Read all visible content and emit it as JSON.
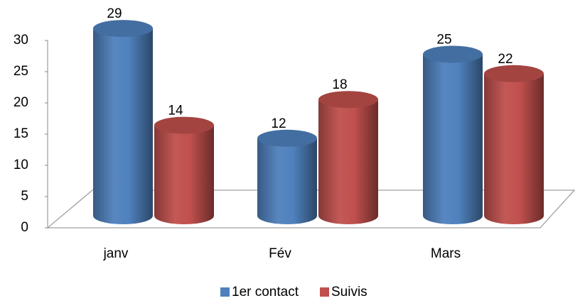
{
  "chart_data": {
    "type": "bar3d-cylinder",
    "categories": [
      "janv",
      "Fév",
      "Mars"
    ],
    "series": [
      {
        "name": "1er contact",
        "color": "#4f81bd",
        "values": [
          29,
          12,
          25
        ]
      },
      {
        "name": "Suivis",
        "color": "#c0504d",
        "values": [
          14,
          18,
          22
        ]
      }
    ],
    "ylim": [
      0,
      30
    ],
    "yticks": [
      0,
      5,
      10,
      15,
      20,
      25,
      30
    ],
    "value_labels_shown": true,
    "legend": "bottom"
  }
}
